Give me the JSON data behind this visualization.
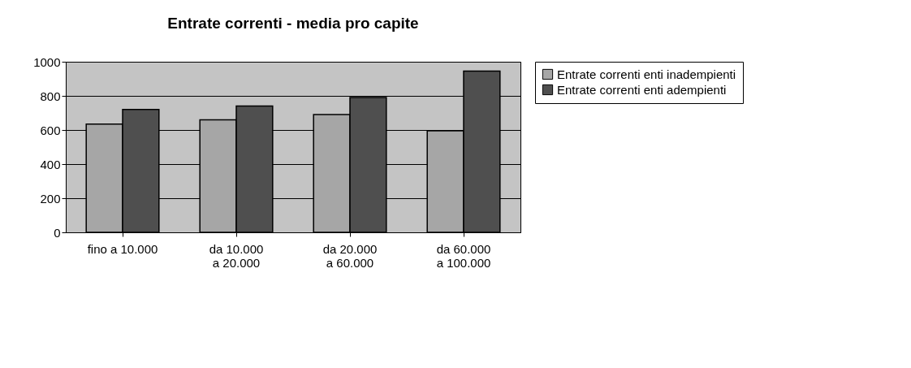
{
  "chart_data": {
    "type": "bar",
    "title": "Entrate correnti - media pro capite",
    "categories": [
      "fino a 10.000",
      "da 10.000 a 20.000",
      "da 20.000 a 60.000",
      "da 60.000 a 100.000"
    ],
    "series": [
      {
        "name": "Entrate correnti enti inadempienti",
        "color": "#a6a6a6",
        "values": [
          635,
          660,
          690,
          595
        ]
      },
      {
        "name": "Entrate correnti enti adempienti",
        "color": "#4f4f4f",
        "values": [
          720,
          740,
          790,
          945
        ]
      }
    ],
    "ylim": [
      0,
      1000
    ],
    "yticks": [
      0,
      200,
      400,
      600,
      800,
      1000
    ],
    "grid": "y",
    "legend": "right"
  }
}
